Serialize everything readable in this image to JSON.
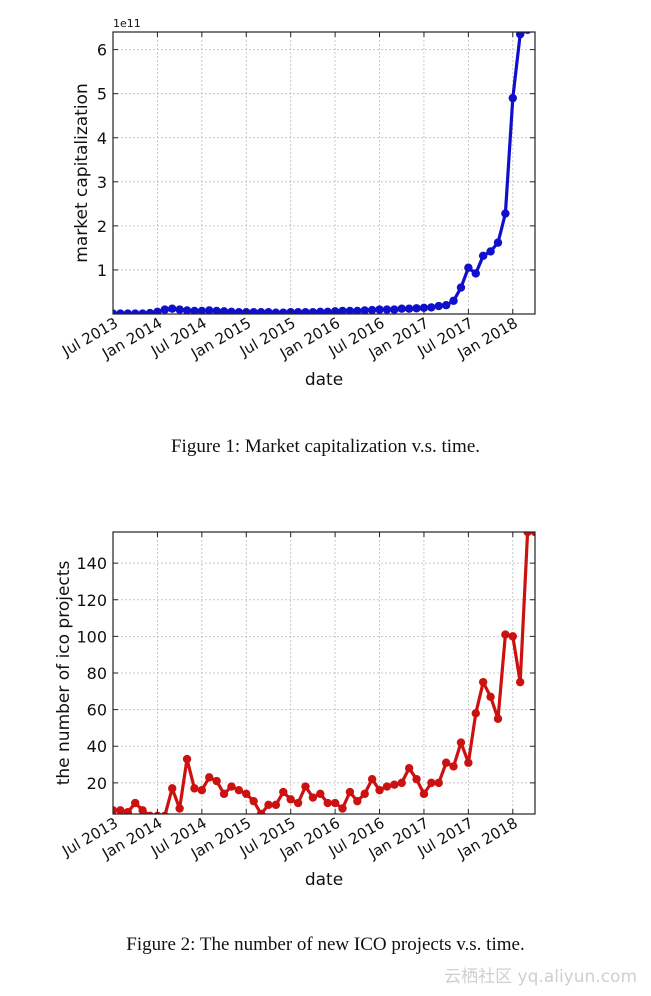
{
  "chart_data": [
    {
      "type": "line",
      "title": "",
      "xlabel": "date",
      "ylabel": "market capitalization",
      "y_multiplier": "1e11",
      "x_tick_labels": [
        "Jul 2013",
        "Jan 2014",
        "Jul 2014",
        "Jan 2015",
        "Jul 2015",
        "Jan 2016",
        "Jul 2016",
        "Jan 2017",
        "Jul 2017",
        "Jan 2018"
      ],
      "x_range": [
        0,
        57
      ],
      "ylim": [
        0,
        6.4
      ],
      "y_ticks": [
        1,
        2,
        3,
        4,
        5,
        6
      ],
      "grid": true,
      "series": [
        {
          "name": "market capitalization",
          "color": "#1010cc",
          "x": [
            0,
            1,
            2,
            3,
            4,
            5,
            6,
            7,
            8,
            9,
            10,
            11,
            12,
            13,
            14,
            15,
            16,
            17,
            18,
            19,
            20,
            21,
            22,
            23,
            24,
            25,
            26,
            27,
            28,
            29,
            30,
            31,
            32,
            33,
            34,
            35,
            36,
            37,
            38,
            39,
            40,
            41,
            42,
            43,
            44,
            45,
            46,
            47,
            48,
            49,
            50,
            51,
            52,
            53,
            54,
            55,
            56
          ],
          "values": [
            0.01,
            0.01,
            0.01,
            0.01,
            0.01,
            0.02,
            0.05,
            0.1,
            0.12,
            0.1,
            0.08,
            0.07,
            0.07,
            0.08,
            0.07,
            0.06,
            0.05,
            0.04,
            0.04,
            0.04,
            0.04,
            0.04,
            0.03,
            0.03,
            0.04,
            0.04,
            0.04,
            0.04,
            0.05,
            0.05,
            0.06,
            0.07,
            0.07,
            0.07,
            0.08,
            0.09,
            0.1,
            0.1,
            0.1,
            0.12,
            0.12,
            0.13,
            0.14,
            0.15,
            0.18,
            0.2,
            0.3,
            0.6,
            1.05,
            0.92,
            1.32,
            1.42,
            1.62,
            2.28,
            4.9,
            6.35,
            6.45
          ]
        }
      ]
    },
    {
      "type": "line",
      "title": "",
      "xlabel": "date",
      "ylabel": "the number of ico projects",
      "x_tick_labels": [
        "Jul 2013",
        "Jan 2014",
        "Jul 2014",
        "Jan 2015",
        "Jul 2015",
        "Jan 2016",
        "Jul 2016",
        "Jan 2017",
        "Jul 2017",
        "Jan 2018"
      ],
      "x_range": [
        0,
        57
      ],
      "ylim": [
        3,
        157
      ],
      "y_ticks": [
        20,
        40,
        60,
        80,
        100,
        120,
        140
      ],
      "grid": true,
      "series": [
        {
          "name": "new ICO projects",
          "color": "#cc1111",
          "x": [
            0,
            1,
            2,
            3,
            4,
            5,
            6,
            7,
            8,
            9,
            10,
            11,
            12,
            13,
            14,
            15,
            16,
            17,
            18,
            19,
            20,
            21,
            22,
            23,
            24,
            25,
            26,
            27,
            28,
            29,
            30,
            31,
            32,
            33,
            34,
            35,
            36,
            37,
            38,
            39,
            40,
            41,
            42,
            43,
            44,
            45,
            46,
            47,
            48,
            49,
            50,
            51,
            52,
            53,
            54,
            55,
            56,
            57
          ],
          "values": [
            5,
            5,
            4,
            9,
            5,
            2,
            2,
            2,
            17,
            6,
            33,
            17,
            16,
            23,
            21,
            14,
            18,
            16,
            14,
            10,
            3,
            8,
            8,
            15,
            11,
            9,
            18,
            12,
            14,
            9,
            9,
            6,
            15,
            10,
            14,
            22,
            16,
            18,
            19,
            20,
            28,
            22,
            14,
            20,
            20,
            31,
            29,
            42,
            31,
            58,
            75,
            67,
            55,
            101,
            100,
            75,
            157,
            157
          ]
        }
      ]
    }
  ],
  "captions": {
    "figure1": "Figure 1: Market capitalization v.s. time.",
    "figure2": "Figure 2: The number of new ICO projects v.s. time."
  },
  "watermark": "云栖社区 yq.aliyun.com"
}
